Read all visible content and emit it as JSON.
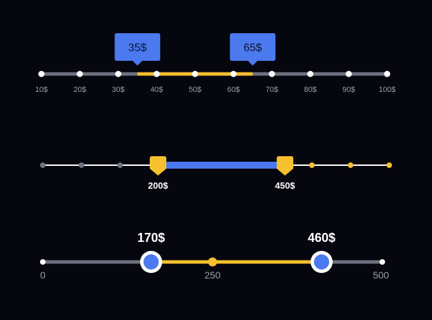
{
  "colors": {
    "background": "#06060f",
    "track_gray": "#6f7280",
    "accent_yellow": "#f6c02e",
    "accent_blue": "#4b79ee",
    "white": "#ffffff",
    "tick_label": "#9b9ea8"
  },
  "slider1": {
    "ticks": [
      "10$",
      "20$",
      "30$",
      "40$",
      "50$",
      "60$",
      "70$",
      "80$",
      "90$",
      "100$"
    ],
    "range_min": 10,
    "range_max": 100,
    "low_value": 35,
    "high_value": 65,
    "low_label": "35$",
    "high_label": "65$"
  },
  "slider2": {
    "range_min": 0,
    "range_max": 1000,
    "low_value": 200,
    "high_value": 450,
    "low_label": "200$",
    "high_label": "450$"
  },
  "slider3": {
    "range_min": 0,
    "range_max": 500,
    "tick_labels": [
      "0",
      "250",
      "500"
    ],
    "low_value": 170,
    "high_value": 460,
    "low_label": "170$",
    "high_label": "460$"
  }
}
